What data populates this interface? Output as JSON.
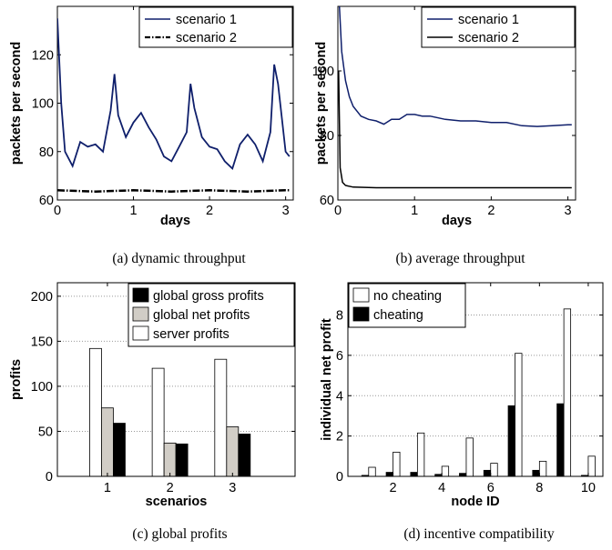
{
  "chart_data": [
    {
      "id": "a",
      "type": "line",
      "caption": "(a) dynamic throughput",
      "xlabel": "days",
      "ylabel": "packets per second",
      "xlim": [
        0,
        3.1
      ],
      "ylim": [
        60,
        140
      ],
      "xticks": [
        0,
        1,
        2,
        3
      ],
      "yticks": [
        60,
        80,
        100,
        120
      ],
      "grid": false,
      "legend": "top-right",
      "series": [
        {
          "name": "scenario 1",
          "color": "#0f1f6b",
          "style": "solid",
          "x": [
            0,
            0.05,
            0.1,
            0.2,
            0.3,
            0.4,
            0.5,
            0.6,
            0.7,
            0.75,
            0.8,
            0.9,
            1.0,
            1.1,
            1.2,
            1.3,
            1.4,
            1.5,
            1.6,
            1.7,
            1.75,
            1.8,
            1.9,
            2.0,
            2.1,
            2.2,
            2.3,
            2.4,
            2.5,
            2.6,
            2.7,
            2.8,
            2.85,
            2.9,
            3.0,
            3.05
          ],
          "y": [
            135,
            100,
            80,
            74,
            84,
            82,
            83,
            80,
            97,
            112,
            95,
            86,
            92,
            96,
            90,
            85,
            78,
            76,
            82,
            88,
            108,
            98,
            86,
            82,
            81,
            76,
            73,
            83,
            87,
            83,
            76,
            88,
            116,
            108,
            80,
            78
          ]
        },
        {
          "name": "scenario 2",
          "color": "#000000",
          "style": "dashdot",
          "x": [
            0,
            0.5,
            1.0,
            1.5,
            2.0,
            2.5,
            3.0,
            3.05
          ],
          "y": [
            64,
            63.5,
            64,
            63.5,
            64,
            63.5,
            64,
            64
          ]
        }
      ]
    },
    {
      "id": "b",
      "type": "line",
      "caption": "(b) average throughput",
      "xlabel": "days",
      "ylabel": "packets per second",
      "xlim": [
        0,
        3.1
      ],
      "ylim": [
        60,
        120
      ],
      "xticks": [
        0,
        1,
        2,
        3
      ],
      "yticks": [
        60,
        80,
        100
      ],
      "grid": false,
      "legend": "top-right",
      "series": [
        {
          "name": "scenario 1",
          "color": "#0f1f6b",
          "style": "solid",
          "x": [
            0.02,
            0.05,
            0.1,
            0.15,
            0.2,
            0.3,
            0.4,
            0.5,
            0.6,
            0.7,
            0.8,
            0.9,
            1.0,
            1.1,
            1.2,
            1.4,
            1.6,
            1.8,
            2.0,
            2.2,
            2.4,
            2.6,
            2.8,
            3.0,
            3.05
          ],
          "y": [
            120,
            106,
            97,
            92,
            89,
            86,
            85,
            84.5,
            83.5,
            85,
            85,
            86.5,
            86.5,
            86,
            86,
            85,
            84.5,
            84.5,
            84,
            84,
            83,
            82.8,
            83,
            83.3,
            83.3
          ]
        },
        {
          "name": "scenario 2",
          "color": "#000000",
          "style": "solid",
          "x": [
            0.01,
            0.03,
            0.06,
            0.1,
            0.2,
            0.5,
            1.0,
            2.0,
            3.0,
            3.05
          ],
          "y": [
            100,
            70,
            65.5,
            64.5,
            64,
            63.8,
            63.8,
            63.8,
            63.8,
            63.8
          ]
        }
      ]
    },
    {
      "id": "c",
      "type": "bar",
      "caption": "(c) global profits",
      "xlabel": "scenarios",
      "ylabel": "profits",
      "categories": [
        "1",
        "2",
        "3"
      ],
      "ylim": [
        0,
        215
      ],
      "yticks": [
        0,
        50,
        100,
        150,
        200
      ],
      "grid": true,
      "legend": "top-right",
      "series": [
        {
          "name": "server profits",
          "color": "#ffffff",
          "values": [
            142,
            120,
            130
          ]
        },
        {
          "name": "global net profits",
          "color": "#d1cdc6",
          "values": [
            76,
            37,
            55
          ]
        },
        {
          "name": "global gross profits",
          "color": "#000000",
          "values": [
            59,
            36,
            47
          ]
        }
      ],
      "legend_order": [
        2,
        1,
        0
      ]
    },
    {
      "id": "d",
      "type": "bar",
      "caption": "(d) incentive compatibility",
      "xlabel": "node ID",
      "ylabel": "individual net profit",
      "categories": [
        1,
        2,
        3,
        4,
        5,
        6,
        7,
        8,
        9,
        10
      ],
      "xticks": [
        2,
        4,
        6,
        8,
        10
      ],
      "ylim": [
        0,
        9.6
      ],
      "yticks": [
        0,
        2,
        4,
        6,
        8
      ],
      "grid": true,
      "legend": "top-left",
      "series": [
        {
          "name": "cheating",
          "color": "#000000",
          "values": [
            0.05,
            0.2,
            0.2,
            0.1,
            0.15,
            0.3,
            3.5,
            0.3,
            3.6,
            0.05
          ]
        },
        {
          "name": "no cheating",
          "color": "#ffffff",
          "values": [
            0.45,
            1.2,
            2.15,
            0.5,
            1.9,
            0.65,
            6.1,
            0.75,
            8.3,
            1.0
          ]
        }
      ],
      "legend_order": [
        1,
        0
      ]
    }
  ]
}
